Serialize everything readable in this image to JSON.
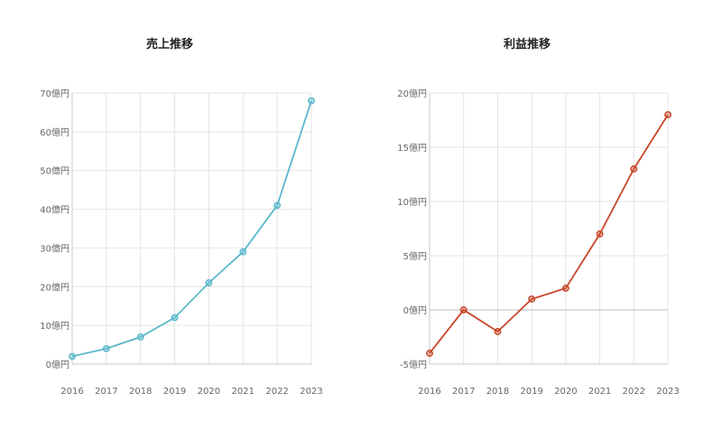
{
  "chart_data": [
    {
      "type": "line",
      "title": "売上推移",
      "xlabel": "",
      "ylabel": "",
      "categories": [
        "2016",
        "2017",
        "2018",
        "2019",
        "2020",
        "2021",
        "2022",
        "2023"
      ],
      "series": [
        {
          "values": [
            2,
            4,
            7,
            12,
            21,
            29,
            41,
            68
          ],
          "color": "#5bb8cc"
        }
      ],
      "ylim": [
        0,
        70
      ],
      "yticks": [
        0,
        10,
        20,
        30,
        40,
        50,
        60,
        70
      ],
      "ytick_labels": [
        "0億円",
        "10億円",
        "20億円",
        "30億円",
        "40億円",
        "50億円",
        "60億円",
        "70億円"
      ],
      "grid": true
    },
    {
      "type": "line",
      "title": "利益推移",
      "xlabel": "",
      "ylabel": "",
      "categories": [
        "2016",
        "2017",
        "2018",
        "2019",
        "2020",
        "2021",
        "2022",
        "2023"
      ],
      "series": [
        {
          "values": [
            -4,
            0,
            -2,
            1,
            2,
            7,
            13,
            18
          ],
          "color": "#c8472a"
        }
      ],
      "ylim": [
        -5,
        20
      ],
      "yticks": [
        -5,
        0,
        5,
        10,
        15,
        20
      ],
      "ytick_labels": [
        "-5億円",
        "0億円",
        "5億円",
        "10億円",
        "15億円",
        "20億円"
      ],
      "grid": true
    }
  ]
}
